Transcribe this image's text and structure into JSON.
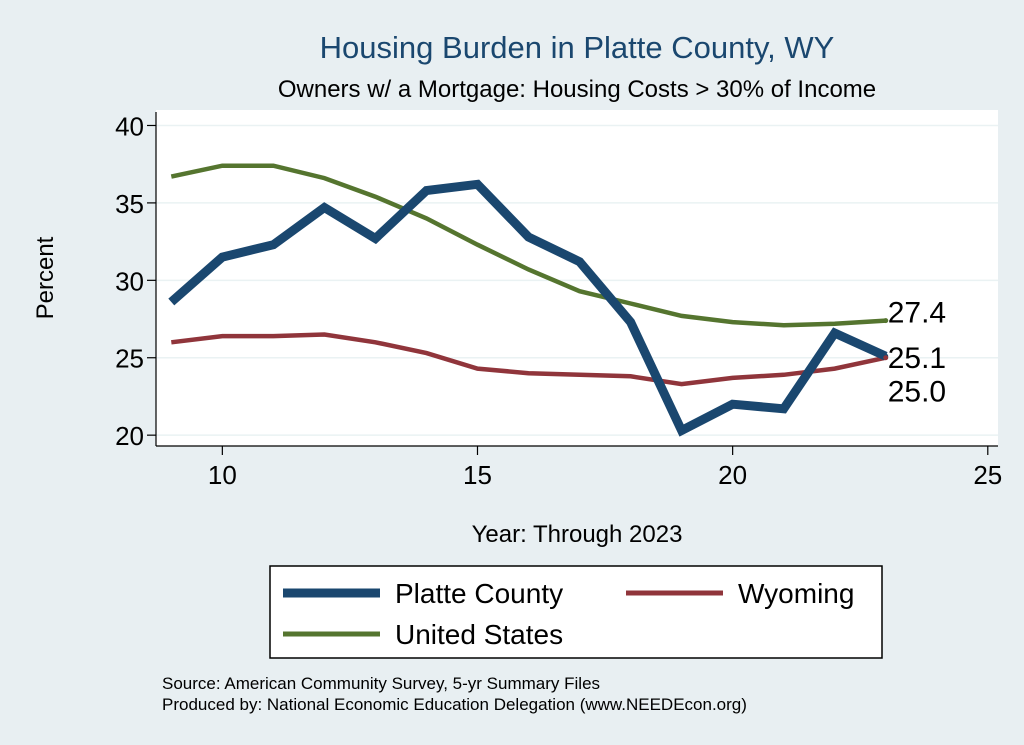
{
  "chart_data": {
    "type": "line",
    "title": "Housing Burden in Platte County, WY",
    "subtitle": "Owners w/ a Mortgage: Housing Costs > 30% of Income",
    "xlabel": "Year: Through 2023",
    "ylabel": "Percent",
    "xlim": [
      8.7,
      25.2
    ],
    "ylim": [
      19.3,
      41.0
    ],
    "x_ticks": [
      10,
      15,
      20,
      25
    ],
    "x_tick_labels": [
      "10",
      "15",
      "20",
      "25"
    ],
    "y_ticks": [
      20,
      25,
      30,
      35,
      40
    ],
    "y_tick_labels": [
      "20",
      "25",
      "30",
      "35",
      "40"
    ],
    "grid": true,
    "legend_position": "bottom",
    "series": [
      {
        "name": "Platte County",
        "color": "#1a476f",
        "x": [
          9,
          10,
          11,
          12,
          13,
          14,
          15,
          16,
          17,
          18,
          19,
          20,
          21,
          22,
          23
        ],
        "values": [
          28.6,
          31.5,
          32.3,
          34.7,
          32.7,
          35.8,
          36.2,
          32.8,
          31.2,
          27.3,
          20.3,
          22.0,
          21.7,
          26.6,
          25.1
        ],
        "end_label": "25.1"
      },
      {
        "name": "Wyoming",
        "color": "#90353b",
        "x": [
          9,
          10,
          11,
          12,
          13,
          14,
          15,
          16,
          17,
          18,
          19,
          20,
          21,
          22,
          23
        ],
        "values": [
          26.0,
          26.4,
          26.4,
          26.5,
          26.0,
          25.3,
          24.3,
          24.0,
          23.9,
          23.8,
          23.3,
          23.7,
          23.9,
          24.3,
          25.0
        ],
        "end_label": "25.0"
      },
      {
        "name": "United States",
        "color": "#55752f",
        "x": [
          9,
          10,
          11,
          12,
          13,
          14,
          15,
          16,
          17,
          18,
          19,
          20,
          21,
          22,
          23
        ],
        "values": [
          36.7,
          37.4,
          37.4,
          36.6,
          35.4,
          34.0,
          32.3,
          30.7,
          29.3,
          28.5,
          27.7,
          27.3,
          27.1,
          27.2,
          27.4
        ],
        "end_label": "27.4"
      }
    ],
    "legend_entries": [
      "Platte County",
      "Wyoming",
      "United States"
    ]
  },
  "footer": {
    "source": "Source: American Community Survey, 5-yr Summary Files",
    "produced": "Produced by: National Economic Education Delegation (www.NEEDEcon.org)"
  }
}
